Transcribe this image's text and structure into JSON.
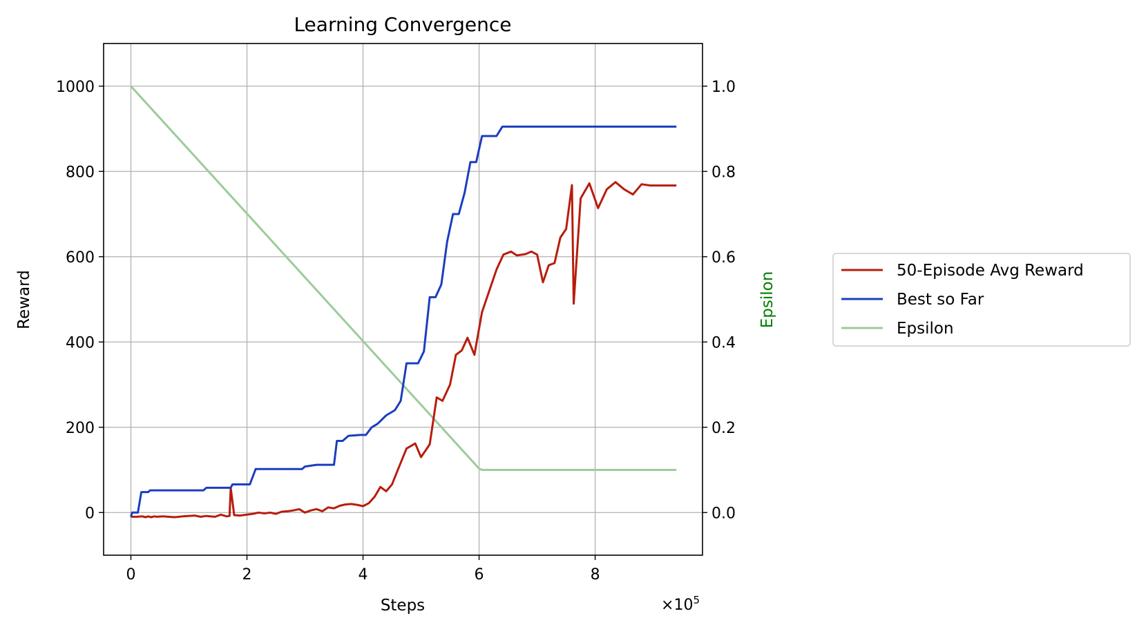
{
  "chart_data": {
    "type": "line",
    "title": "Learning Convergence",
    "xlabel": "Steps",
    "ylabel": "Reward",
    "y2label": "Epsilon",
    "x_scale_label": "×10",
    "x_scale_exponent": "5",
    "xlim": [
      -47000,
      985000
    ],
    "ylim": [
      -100,
      1100
    ],
    "y2lim": [
      -0.1,
      1.1
    ],
    "x_ticks": [
      0,
      200000,
      400000,
      600000,
      800000
    ],
    "x_tick_labels": [
      "0",
      "2",
      "4",
      "6",
      "8"
    ],
    "y_ticks": [
      0,
      200,
      400,
      600,
      800,
      1000
    ],
    "y_tick_labels": [
      "0",
      "200",
      "400",
      "600",
      "800",
      "1000"
    ],
    "y2_ticks": [
      0.0,
      0.2,
      0.4,
      0.6,
      0.8,
      1.0
    ],
    "y2_tick_labels": [
      "0.0",
      "0.2",
      "0.4",
      "0.6",
      "0.8",
      "1.0"
    ],
    "grid": true,
    "legend_position": "outside-right",
    "series": [
      {
        "name": "50-Episode Avg Reward",
        "color": "#b81c0c",
        "axis": "left",
        "points": [
          [
            0,
            -10
          ],
          [
            10000,
            -10
          ],
          [
            20000,
            -9
          ],
          [
            25000,
            -11
          ],
          [
            30000,
            -9
          ],
          [
            35000,
            -11
          ],
          [
            40000,
            -9
          ],
          [
            45000,
            -10
          ],
          [
            55000,
            -9
          ],
          [
            65000,
            -10
          ],
          [
            75000,
            -11
          ],
          [
            90000,
            -9
          ],
          [
            110000,
            -7
          ],
          [
            120000,
            -10
          ],
          [
            130000,
            -8
          ],
          [
            145000,
            -10
          ],
          [
            155000,
            -5
          ],
          [
            165000,
            -9
          ],
          [
            170000,
            -8
          ],
          [
            172000,
            58
          ],
          [
            178000,
            -6
          ],
          [
            188000,
            -7
          ],
          [
            200000,
            -5
          ],
          [
            210000,
            -3
          ],
          [
            220000,
            0
          ],
          [
            230000,
            -2
          ],
          [
            240000,
            0
          ],
          [
            250000,
            -3
          ],
          [
            260000,
            2
          ],
          [
            270000,
            3
          ],
          [
            280000,
            5
          ],
          [
            290000,
            8
          ],
          [
            300000,
            0
          ],
          [
            310000,
            5
          ],
          [
            320000,
            8
          ],
          [
            330000,
            3
          ],
          [
            340000,
            12
          ],
          [
            350000,
            10
          ],
          [
            360000,
            16
          ],
          [
            370000,
            19
          ],
          [
            380000,
            20
          ],
          [
            390000,
            18
          ],
          [
            400000,
            15
          ],
          [
            410000,
            22
          ],
          [
            420000,
            37
          ],
          [
            430000,
            60
          ],
          [
            440000,
            50
          ],
          [
            450000,
            66
          ],
          [
            460000,
            100
          ],
          [
            475000,
            150
          ],
          [
            490000,
            162
          ],
          [
            500000,
            130
          ],
          [
            515000,
            160
          ],
          [
            527000,
            270
          ],
          [
            537000,
            262
          ],
          [
            550000,
            300
          ],
          [
            560000,
            370
          ],
          [
            570000,
            380
          ],
          [
            580000,
            410
          ],
          [
            592000,
            370
          ],
          [
            605000,
            470
          ],
          [
            620000,
            530
          ],
          [
            630000,
            570
          ],
          [
            642000,
            605
          ],
          [
            655000,
            612
          ],
          [
            665000,
            603
          ],
          [
            680000,
            606
          ],
          [
            690000,
            612
          ],
          [
            700000,
            605
          ],
          [
            710000,
            540
          ],
          [
            720000,
            580
          ],
          [
            730000,
            585
          ],
          [
            740000,
            645
          ],
          [
            750000,
            665
          ],
          [
            760000,
            768
          ],
          [
            763000,
            490
          ],
          [
            775000,
            737
          ],
          [
            790000,
            772
          ],
          [
            805000,
            714
          ],
          [
            820000,
            758
          ],
          [
            835000,
            775
          ],
          [
            850000,
            758
          ],
          [
            865000,
            746
          ],
          [
            880000,
            770
          ],
          [
            895000,
            767
          ],
          [
            940000,
            767
          ]
        ]
      },
      {
        "name": "Best so Far",
        "color": "#1a3dbf",
        "axis": "left",
        "points": [
          [
            0,
            -10
          ],
          [
            2000,
            0
          ],
          [
            12000,
            0
          ],
          [
            18000,
            48
          ],
          [
            30000,
            48
          ],
          [
            33000,
            52
          ],
          [
            125000,
            52
          ],
          [
            130000,
            58
          ],
          [
            172000,
            58
          ],
          [
            175000,
            66
          ],
          [
            205000,
            66
          ],
          [
            215000,
            102
          ],
          [
            295000,
            102
          ],
          [
            300000,
            108
          ],
          [
            320000,
            112
          ],
          [
            350000,
            112
          ],
          [
            355000,
            168
          ],
          [
            365000,
            168
          ],
          [
            375000,
            180
          ],
          [
            395000,
            182
          ],
          [
            405000,
            182
          ],
          [
            415000,
            200
          ],
          [
            425000,
            208
          ],
          [
            440000,
            228
          ],
          [
            455000,
            240
          ],
          [
            465000,
            262
          ],
          [
            475000,
            350
          ],
          [
            495000,
            350
          ],
          [
            505000,
            378
          ],
          [
            515000,
            505
          ],
          [
            525000,
            505
          ],
          [
            535000,
            535
          ],
          [
            545000,
            635
          ],
          [
            555000,
            700
          ],
          [
            565000,
            700
          ],
          [
            575000,
            750
          ],
          [
            585000,
            822
          ],
          [
            595000,
            822
          ],
          [
            605000,
            883
          ],
          [
            630000,
            883
          ],
          [
            640000,
            905
          ],
          [
            940000,
            905
          ]
        ]
      },
      {
        "name": "Epsilon",
        "color": "#9bcc98",
        "axis": "right",
        "points": [
          [
            0,
            1.0
          ],
          [
            600000,
            0.103
          ],
          [
            605000,
            0.1
          ],
          [
            940000,
            0.1
          ]
        ]
      }
    ]
  }
}
